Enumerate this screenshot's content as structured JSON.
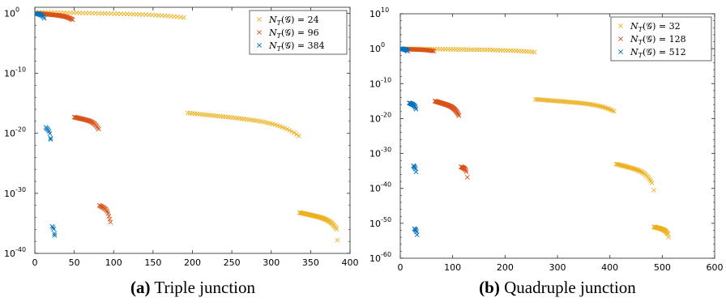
{
  "chart_data": [
    {
      "type": "scatter",
      "caption_tag": "(a)",
      "caption_text": "Triple junction",
      "xlim": [
        0,
        400
      ],
      "xticks": [
        0,
        50,
        100,
        150,
        200,
        250,
        300,
        350,
        400
      ],
      "ylog": true,
      "ylim_exp": [
        -40,
        1
      ],
      "yticks": [
        {
          "exp": 0,
          "label": "0"
        },
        {
          "exp": -10,
          "label": "-10"
        },
        {
          "exp": -20,
          "label": "-20"
        },
        {
          "exp": -30,
          "label": "-30"
        },
        {
          "exp": -40,
          "label": "-40"
        }
      ],
      "legend_position": "top-right",
      "legend_base": "10",
      "series": [
        {
          "name": "N_T(G) = 24",
          "legend_lhs": "N",
          "legend_sub": "T",
          "legend_mid": "(𝒢) = ",
          "legend_num": "24",
          "color": "#EDB120",
          "clusters": [
            [
              1,
              192,
              0.2,
              -0.6
            ],
            [
              194,
              335,
              -16.6,
              -19.8
            ],
            [
              336,
              383,
              -33.2,
              -35.5
            ]
          ],
          "extra": [
            [
              384,
              -37.8
            ]
          ]
        },
        {
          "name": "N_T(G) = 96",
          "legend_lhs": "N",
          "legend_sub": "T",
          "legend_mid": "(𝒢) = ",
          "legend_num": "96",
          "color": "#D95319",
          "clusters": [
            [
              2,
              48,
              0.0,
              -0.9
            ],
            [
              50,
              80,
              -17.3,
              -18.8
            ],
            [
              82,
              94,
              -32.0,
              -33.5
            ]
          ],
          "extra": [
            [
              81,
              -19.3
            ],
            [
              95,
              -34.3
            ],
            [
              96,
              -34.8
            ]
          ]
        },
        {
          "name": "N_T(G) = 384",
          "legend_lhs": "N",
          "legend_sub": "T",
          "legend_mid": "(𝒢) = ",
          "legend_num": "384",
          "color": "#0072BD",
          "clusters": [
            [
              1,
              12,
              0.0,
              -0.7
            ],
            [
              14,
              20,
              -19.0,
              -20.5
            ],
            [
              22,
              25,
              -35.5,
              -36.5
            ]
          ],
          "extra": [
            [
              20,
              -21.0
            ],
            [
              25,
              -37.0
            ]
          ]
        }
      ]
    },
    {
      "type": "scatter",
      "caption_tag": "(b)",
      "caption_text": "Quadruple junction",
      "xlim": [
        0,
        600
      ],
      "xticks": [
        0,
        100,
        200,
        300,
        400,
        500,
        600
      ],
      "ylog": true,
      "ylim_exp": [
        -60,
        10
      ],
      "yticks": [
        {
          "exp": 10,
          "label": "10"
        },
        {
          "exp": 0,
          "label": "0"
        },
        {
          "exp": -10,
          "label": "-10"
        },
        {
          "exp": -20,
          "label": "-20"
        },
        {
          "exp": -30,
          "label": "-30"
        },
        {
          "exp": -40,
          "label": "-40"
        },
        {
          "exp": -50,
          "label": "-50"
        },
        {
          "exp": -60,
          "label": "-60"
        }
      ],
      "legend_position": "top-right",
      "legend_base": "10",
      "series": [
        {
          "name": "N_T(G) = 32",
          "legend_lhs": "N",
          "legend_sub": "T",
          "legend_mid": "(𝒢) = ",
          "legend_num": "32",
          "color": "#EDB120",
          "clusters": [
            [
              1,
              256,
              0.0,
              -0.8
            ],
            [
              258,
              410,
              -14.5,
              -17.5
            ],
            [
              412,
              480,
              -33.0,
              -37.5
            ],
            [
              484,
              511,
              -51.0,
              -52.8
            ]
          ],
          "extra": [
            [
              484,
              -40.5
            ],
            [
              512,
              -54.0
            ]
          ]
        },
        {
          "name": "N_T(G) = 128",
          "legend_lhs": "N",
          "legend_sub": "T",
          "legend_mid": "(𝒢) = ",
          "legend_num": "128",
          "color": "#D95319",
          "clusters": [
            [
              2,
              64,
              -0.1,
              -0.6
            ],
            [
              66,
              112,
              -15.0,
              -18.5
            ],
            [
              116,
              126,
              -33.8,
              -35.0
            ]
          ],
          "extra": [
            [
              128,
              -36.8
            ]
          ]
        },
        {
          "name": "N_T(G) = 512",
          "legend_lhs": "N",
          "legend_sub": "T",
          "legend_mid": "(𝒢) = ",
          "legend_num": "512",
          "color": "#0072BD",
          "clusters": [
            [
              1,
              14,
              0.0,
              -0.6
            ],
            [
              17,
              30,
              -15.5,
              -17.0
            ],
            [
              25,
              30,
              -33.5,
              -35.0
            ],
            [
              27,
              32,
              -51.5,
              -53.0
            ]
          ],
          "extra": []
        }
      ]
    }
  ]
}
